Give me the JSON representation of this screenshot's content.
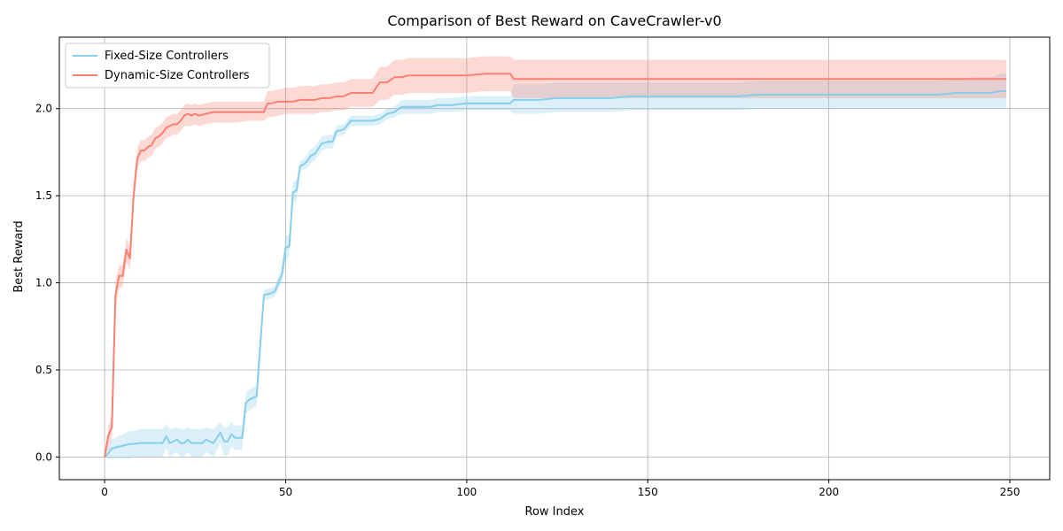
{
  "chart_data": {
    "type": "line",
    "title": "Comparison of Best Reward on CaveCrawler-v0",
    "xlabel": "Row Index",
    "ylabel": "Best Reward",
    "xlim": [
      -12.5,
      261
    ],
    "ylim": [
      -0.13,
      2.41
    ],
    "xticks": [
      0,
      50,
      100,
      150,
      200,
      250
    ],
    "yticks": [
      0.0,
      0.5,
      1.0,
      1.5,
      2.0
    ],
    "xtick_labels": [
      "0",
      "50",
      "100",
      "150",
      "200",
      "250"
    ],
    "ytick_labels": [
      "0.0",
      "0.5",
      "1.0",
      "1.5",
      "2.0"
    ],
    "grid": true,
    "legend_position": "top-left",
    "series": [
      {
        "name": "Fixed-Size Controllers",
        "color": "#87CEEB",
        "x": [
          0,
          1,
          2,
          3,
          4,
          5,
          6,
          7,
          8,
          10,
          12,
          14,
          16,
          17,
          18,
          20,
          21,
          22,
          23,
          24,
          26,
          27,
          28,
          30,
          32,
          33,
          34,
          35,
          36,
          38,
          39,
          40,
          42,
          43,
          44,
          46,
          47,
          48,
          49,
          50,
          51,
          52,
          53,
          54,
          55,
          56,
          57,
          58,
          60,
          62,
          63,
          64,
          66,
          68,
          72,
          74,
          76,
          78,
          80,
          82,
          86,
          90,
          92,
          96,
          100,
          104,
          108,
          112,
          113,
          115,
          120,
          125,
          130,
          135,
          140,
          145,
          150,
          155,
          160,
          165,
          170,
          175,
          180,
          185,
          190,
          195,
          200,
          210,
          220,
          230,
          235,
          240,
          245,
          247,
          249
        ],
        "values": [
          0.0,
          0.02,
          0.05,
          0.055,
          0.06,
          0.065,
          0.07,
          0.075,
          0.075,
          0.08,
          0.08,
          0.08,
          0.08,
          0.12,
          0.08,
          0.1,
          0.08,
          0.08,
          0.1,
          0.08,
          0.08,
          0.08,
          0.1,
          0.08,
          0.14,
          0.09,
          0.09,
          0.13,
          0.11,
          0.11,
          0.31,
          0.33,
          0.35,
          0.65,
          0.93,
          0.94,
          0.95,
          1.0,
          1.05,
          1.2,
          1.21,
          1.52,
          1.53,
          1.67,
          1.68,
          1.7,
          1.73,
          1.74,
          1.8,
          1.81,
          1.81,
          1.87,
          1.88,
          1.93,
          1.93,
          1.93,
          1.94,
          1.97,
          1.98,
          2.01,
          2.01,
          2.01,
          2.02,
          2.02,
          2.03,
          2.03,
          2.03,
          2.03,
          2.05,
          2.05,
          2.05,
          2.06,
          2.06,
          2.06,
          2.06,
          2.07,
          2.07,
          2.07,
          2.07,
          2.07,
          2.07,
          2.07,
          2.08,
          2.08,
          2.08,
          2.08,
          2.08,
          2.08,
          2.08,
          2.08,
          2.09,
          2.09,
          2.09,
          2.1,
          2.1
        ],
        "lower": [
          0.0,
          -0.01,
          -0.01,
          -0.01,
          -0.01,
          -0.01,
          -0.01,
          -0.01,
          0.0,
          0.0,
          0.0,
          0.0,
          0.0,
          0.05,
          0.0,
          0.03,
          0.0,
          0.0,
          0.03,
          0.0,
          0.0,
          0.0,
          0.03,
          0.0,
          0.08,
          0.01,
          0.01,
          0.06,
          0.04,
          0.04,
          0.25,
          0.27,
          0.29,
          0.59,
          0.9,
          0.91,
          0.92,
          0.96,
          1.0,
          1.13,
          1.15,
          1.46,
          1.47,
          1.64,
          1.65,
          1.66,
          1.69,
          1.7,
          1.76,
          1.77,
          1.77,
          1.84,
          1.85,
          1.9,
          1.9,
          1.9,
          1.91,
          1.94,
          1.95,
          1.97,
          1.97,
          1.97,
          1.98,
          1.98,
          1.99,
          1.99,
          1.99,
          1.99,
          1.97,
          1.97,
          1.97,
          1.98,
          1.98,
          1.98,
          1.98,
          1.99,
          1.99,
          1.99,
          1.99,
          1.99,
          1.99,
          1.99,
          2.0,
          2.0,
          2.0,
          2.0,
          2.0,
          2.0,
          2.0,
          2.0,
          2.0,
          2.0,
          2.0,
          2.0,
          2.0
        ],
        "upper": [
          0.0,
          0.06,
          0.1,
          0.11,
          0.12,
          0.13,
          0.14,
          0.15,
          0.15,
          0.16,
          0.16,
          0.16,
          0.16,
          0.19,
          0.16,
          0.17,
          0.16,
          0.16,
          0.17,
          0.16,
          0.16,
          0.16,
          0.17,
          0.16,
          0.2,
          0.17,
          0.17,
          0.2,
          0.18,
          0.18,
          0.37,
          0.39,
          0.41,
          0.71,
          0.96,
          0.97,
          0.98,
          1.04,
          1.1,
          1.27,
          1.28,
          1.58,
          1.59,
          1.7,
          1.71,
          1.74,
          1.77,
          1.78,
          1.84,
          1.85,
          1.85,
          1.9,
          1.91,
          1.96,
          1.96,
          1.96,
          1.97,
          2.0,
          2.01,
          2.05,
          2.05,
          2.05,
          2.06,
          2.06,
          2.07,
          2.07,
          2.07,
          2.07,
          2.14,
          2.14,
          2.14,
          2.15,
          2.15,
          2.15,
          2.15,
          2.15,
          2.15,
          2.15,
          2.15,
          2.15,
          2.15,
          2.15,
          2.16,
          2.16,
          2.16,
          2.16,
          2.16,
          2.16,
          2.16,
          2.16,
          2.17,
          2.18,
          2.18,
          2.2,
          2.2
        ]
      },
      {
        "name": "Dynamic-Size Controllers",
        "color": "#FA8072",
        "x": [
          0,
          1,
          2,
          3,
          4,
          5,
          6,
          7,
          8,
          9,
          10,
          11,
          12,
          13,
          14,
          15,
          16,
          17,
          18,
          19,
          20,
          21,
          22,
          23,
          24,
          25,
          26,
          28,
          30,
          32,
          36,
          40,
          42,
          43,
          44,
          45,
          46,
          48,
          50,
          52,
          54,
          56,
          58,
          60,
          62,
          64,
          66,
          68,
          70,
          72,
          74,
          76,
          78,
          80,
          82,
          84,
          86,
          90,
          95,
          100,
          105,
          110,
          112,
          113,
          115,
          120,
          130,
          140,
          150,
          160,
          170,
          180,
          190,
          200,
          210,
          220,
          230,
          240,
          245,
          249
        ],
        "values": [
          0.0,
          0.12,
          0.17,
          0.93,
          1.04,
          1.04,
          1.19,
          1.14,
          1.5,
          1.71,
          1.76,
          1.76,
          1.78,
          1.79,
          1.83,
          1.84,
          1.86,
          1.89,
          1.9,
          1.91,
          1.91,
          1.93,
          1.96,
          1.97,
          1.96,
          1.97,
          1.96,
          1.97,
          1.98,
          1.98,
          1.98,
          1.98,
          1.98,
          1.98,
          1.98,
          2.03,
          2.03,
          2.04,
          2.04,
          2.04,
          2.05,
          2.05,
          2.05,
          2.06,
          2.06,
          2.07,
          2.07,
          2.09,
          2.09,
          2.09,
          2.09,
          2.15,
          2.15,
          2.18,
          2.18,
          2.19,
          2.19,
          2.19,
          2.19,
          2.19,
          2.2,
          2.2,
          2.2,
          2.17,
          2.17,
          2.17,
          2.17,
          2.17,
          2.17,
          2.17,
          2.17,
          2.17,
          2.17,
          2.17,
          2.17,
          2.17,
          2.17,
          2.17,
          2.17,
          2.17
        ],
        "lower": [
          0.0,
          0.05,
          0.1,
          0.85,
          0.97,
          0.98,
          1.12,
          1.07,
          1.43,
          1.65,
          1.7,
          1.7,
          1.72,
          1.73,
          1.77,
          1.78,
          1.8,
          1.83,
          1.84,
          1.85,
          1.85,
          1.87,
          1.9,
          1.9,
          1.9,
          1.91,
          1.9,
          1.91,
          1.92,
          1.92,
          1.92,
          1.93,
          1.93,
          1.93,
          1.93,
          1.95,
          1.95,
          1.96,
          1.97,
          1.97,
          1.97,
          1.97,
          1.97,
          1.98,
          1.98,
          1.99,
          1.99,
          2.01,
          2.01,
          2.01,
          2.01,
          2.05,
          2.05,
          2.08,
          2.08,
          2.09,
          2.09,
          2.09,
          2.09,
          2.09,
          2.1,
          2.1,
          2.1,
          2.06,
          2.06,
          2.06,
          2.06,
          2.06,
          2.06,
          2.06,
          2.06,
          2.06,
          2.06,
          2.06,
          2.06,
          2.06,
          2.06,
          2.06,
          2.06,
          2.06
        ],
        "upper": [
          0.0,
          0.18,
          0.24,
          1.01,
          1.1,
          1.1,
          1.26,
          1.21,
          1.57,
          1.77,
          1.82,
          1.82,
          1.84,
          1.85,
          1.89,
          1.9,
          1.92,
          1.95,
          1.96,
          1.97,
          1.97,
          1.99,
          2.02,
          2.03,
          2.02,
          2.03,
          2.02,
          2.03,
          2.04,
          2.04,
          2.04,
          2.04,
          2.04,
          2.04,
          2.04,
          2.1,
          2.1,
          2.11,
          2.12,
          2.12,
          2.13,
          2.13,
          2.13,
          2.14,
          2.14,
          2.15,
          2.15,
          2.17,
          2.17,
          2.17,
          2.17,
          2.24,
          2.24,
          2.28,
          2.28,
          2.29,
          2.29,
          2.29,
          2.29,
          2.29,
          2.3,
          2.3,
          2.3,
          2.28,
          2.28,
          2.28,
          2.28,
          2.28,
          2.28,
          2.28,
          2.28,
          2.28,
          2.28,
          2.28,
          2.28,
          2.28,
          2.28,
          2.28,
          2.28,
          2.28
        ]
      }
    ]
  }
}
